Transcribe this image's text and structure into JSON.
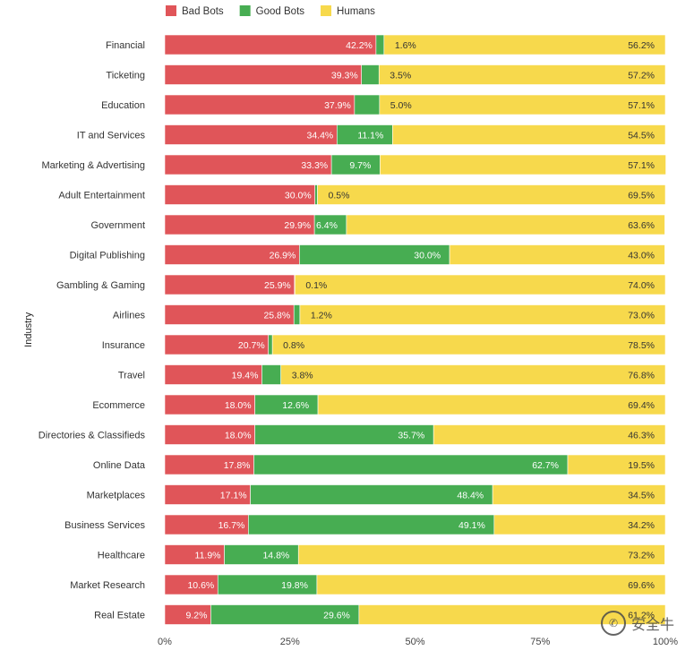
{
  "chart_data": {
    "type": "bar",
    "orientation": "horizontal",
    "stacked": true,
    "y_axis_label": "Industry",
    "categories": [
      "Financial",
      "Ticketing",
      "Education",
      "IT and Services",
      "Marketing & Advertising",
      "Adult Entertainment",
      "Government",
      "Digital Publishing",
      "Gambling & Gaming",
      "Airlines",
      "Insurance",
      "Travel",
      "Ecommerce",
      "Directories & Classifieds",
      "Online Data",
      "Marketplaces",
      "Business Services",
      "Healthcare",
      "Market Research",
      "Real Estate"
    ],
    "series": [
      {
        "name": "Bad Bots",
        "color": "#e05559",
        "values": [
          42.2,
          39.3,
          37.9,
          34.4,
          33.3,
          30.0,
          29.9,
          26.9,
          25.9,
          25.8,
          20.7,
          19.4,
          18.0,
          18.0,
          17.8,
          17.1,
          16.7,
          11.9,
          10.6,
          9.2
        ]
      },
      {
        "name": "Good Bots",
        "color": "#47ad52",
        "values": [
          1.6,
          3.5,
          5.0,
          11.1,
          9.7,
          0.5,
          6.4,
          30.0,
          0.1,
          1.2,
          0.8,
          3.8,
          12.6,
          35.7,
          62.7,
          48.4,
          49.1,
          14.8,
          19.8,
          29.6
        ]
      },
      {
        "name": "Humans",
        "color": "#f7d94c",
        "values": [
          56.2,
          57.2,
          57.1,
          54.5,
          57.1,
          69.5,
          63.6,
          43.0,
          74.0,
          73.0,
          78.5,
          76.8,
          69.4,
          46.3,
          19.5,
          34.5,
          34.2,
          73.2,
          69.6,
          61.2
        ]
      }
    ],
    "x_ticks": [
      "0%",
      "25%",
      "50%",
      "75%",
      "100%"
    ],
    "xlim": [
      0,
      100
    ],
    "legend": "top-left",
    "grid": false
  },
  "watermark": {
    "icon": "wechat-icon",
    "text": "安全牛"
  }
}
